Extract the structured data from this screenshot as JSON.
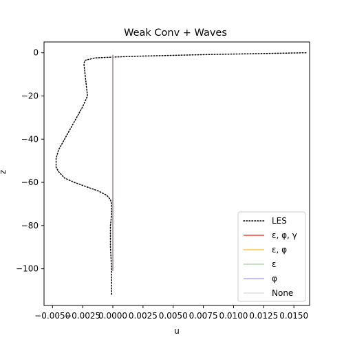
{
  "chart_data": {
    "type": "line",
    "title": "Weak Conv + Waves",
    "xlabel": "u",
    "ylabel": "z",
    "xlim": [
      -0.0057,
      0.0163
    ],
    "ylim": [
      -117,
      5
    ],
    "xticks": [
      -0.005,
      -0.0025,
      0.0,
      0.0025,
      0.005,
      0.0075,
      0.01,
      0.0125,
      0.015
    ],
    "xtick_labels": [
      "−0.0050",
      "−0.0025",
      "0.0000",
      "0.0025",
      "0.0050",
      "0.0075",
      "0.0100",
      "0.0125",
      "0.0150"
    ],
    "yticks": [
      0,
      -20,
      -40,
      -60,
      -80,
      -100
    ],
    "ytick_labels": [
      "0",
      "−20",
      "−40",
      "−60",
      "−80",
      "−100"
    ],
    "grid": false,
    "legend_position": "lower-right",
    "series": [
      {
        "name": "LES",
        "color": "#000000",
        "style": "dotted",
        "x": [
          0.016,
          0.012,
          0.008,
          0.005,
          0.002,
          0.0,
          -0.0015,
          -0.0023,
          -0.0024,
          -0.0023,
          -0.0022,
          -0.0021,
          -0.0025,
          -0.003,
          -0.0035,
          -0.004,
          -0.0045,
          -0.0047,
          -0.0047,
          -0.0045,
          -0.004,
          -0.0032,
          -0.0022,
          -0.0012,
          -0.0005,
          -0.0002,
          -0.0001,
          -0.0001,
          -0.0002,
          -0.0002,
          -0.0001,
          -0.0001
        ],
        "y": [
          0,
          -0.4,
          -0.8,
          -1.2,
          -1.6,
          -2.0,
          -2.4,
          -3.5,
          -5,
          -10,
          -15,
          -20,
          -25,
          -30,
          -35,
          -40,
          -45,
          -49,
          -53,
          -55,
          -58,
          -60,
          -62,
          -64,
          -66,
          -68,
          -70,
          -75,
          -80,
          -90,
          -100,
          -112
        ]
      },
      {
        "name": "ε, φ, γ",
        "color": "#f44336",
        "style": "solid",
        "x": [
          0.0,
          0.0
        ],
        "y": [
          -1,
          -101
        ]
      },
      {
        "name": "ε, φ",
        "color": "#f9c74f",
        "style": "solid",
        "x": [
          0.0,
          0.0
        ],
        "y": [
          -1,
          -101
        ]
      },
      {
        "name": "ε",
        "color": "#b9d3b0",
        "style": "solid",
        "x": [
          0.0,
          0.0
        ],
        "y": [
          -1,
          -101
        ]
      },
      {
        "name": "φ",
        "color": "#b5acd8",
        "style": "solid",
        "x": [
          0.0,
          0.0
        ],
        "y": [
          -1,
          -101
        ]
      },
      {
        "name": "None",
        "color": "#dddddd",
        "style": "solid",
        "x": [
          0.0,
          0.0
        ],
        "y": [
          -1,
          -101
        ]
      }
    ],
    "overlay_line_color": "#a89a9a"
  }
}
